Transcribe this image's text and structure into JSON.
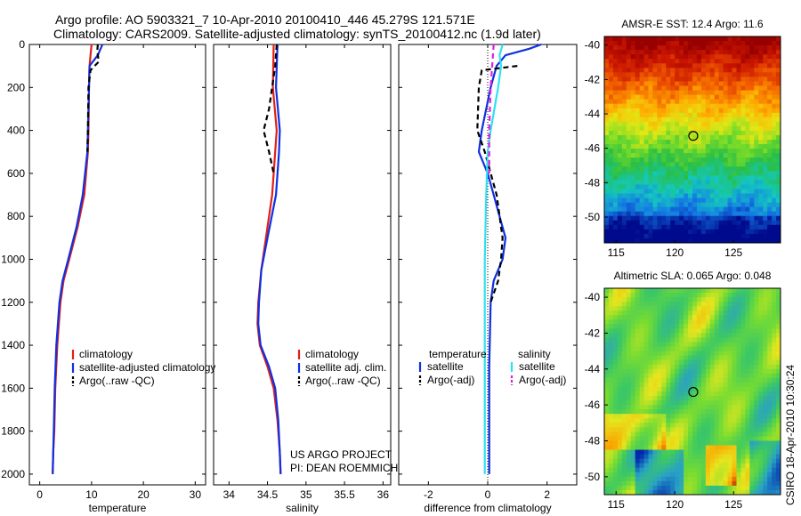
{
  "header": {
    "title_line1": "Argo profile: AO 5903321_7 10-Apr-2010 20100410_446 45.279S 121.571E",
    "title_line2": "Climatology: CARS2009. Satellite-adjusted climatology: synTS_20100412.nc (1.9d later)"
  },
  "credits": {
    "line1": "US ARGO PROJECT",
    "line2": "PI: DEAN ROEMMICH"
  },
  "side_label": "CSIRO 18-Apr-2010 10:30:24",
  "colors": {
    "climatology": "#e0201a",
    "satellite": "#1030e0",
    "argo": "#000000",
    "salinity_satellite": "#30e0f0",
    "salinity_argo": "#e020e0"
  },
  "chart_data": [
    {
      "type": "line",
      "id": "temperature_panel",
      "xlabel": "temperature",
      "ylabel": "",
      "xlim": [
        -2,
        32
      ],
      "ylim": [
        2050,
        0
      ],
      "xticks": [
        0,
        10,
        20,
        30
      ],
      "yticks": [
        0,
        200,
        400,
        600,
        800,
        1000,
        1200,
        1400,
        1600,
        1800,
        2000
      ],
      "y_reversed": true,
      "legend_position": "center-right",
      "series": [
        {
          "name": "climatology",
          "color": "#e0201a",
          "style": "solid",
          "x": [
            10.0,
            9.8,
            9.6,
            9.5,
            9.4,
            9.3,
            8.6,
            7.3,
            5.7,
            4.6,
            4.0,
            3.4,
            3.0,
            2.8,
            2.6,
            2.5
          ],
          "y": [
            0,
            50,
            100,
            200,
            400,
            500,
            700,
            850,
            1000,
            1100,
            1200,
            1400,
            1600,
            1800,
            1900,
            2000
          ]
        },
        {
          "name": "satellite-adjusted climatology",
          "color": "#1030e0",
          "style": "solid",
          "x": [
            12.1,
            11.2,
            9.6,
            9.5,
            9.3,
            9.2,
            8.3,
            7.1,
            5.5,
            4.4,
            3.8,
            3.2,
            2.9,
            2.7,
            2.6,
            2.5
          ],
          "y": [
            0,
            50,
            100,
            200,
            400,
            500,
            700,
            850,
            1000,
            1100,
            1200,
            1400,
            1600,
            1800,
            1900,
            2000
          ]
        },
        {
          "name": "Argo(..raw -QC)",
          "color": "#000000",
          "style": "dashed",
          "x": [
            11.2,
            11.1,
            11.4,
            9.8,
            9.4,
            9.3,
            9.2
          ],
          "y": [
            0,
            30,
            80,
            120,
            200,
            400,
            500
          ]
        }
      ]
    },
    {
      "type": "line",
      "id": "salinity_panel",
      "xlabel": "salinity",
      "ylabel": "",
      "xlim": [
        33.8,
        36.1
      ],
      "ylim": [
        2050,
        0
      ],
      "xticks": [
        34,
        34.5,
        35,
        35.5,
        36
      ],
      "y_reversed": true,
      "legend_position": "center-right",
      "series": [
        {
          "name": "climatology",
          "color": "#e0201a",
          "style": "solid",
          "x": [
            34.58,
            34.57,
            34.62,
            34.6,
            34.56,
            34.48,
            34.42,
            34.38,
            34.37,
            34.4,
            34.5,
            34.58,
            34.63,
            34.66,
            34.67
          ],
          "y": [
            0,
            200,
            400,
            500,
            700,
            900,
            1050,
            1200,
            1300,
            1400,
            1500,
            1600,
            1750,
            1900,
            2000
          ]
        },
        {
          "name": "satellite adj. clim.",
          "color": "#1030e0",
          "style": "solid",
          "x": [
            34.63,
            34.61,
            34.66,
            34.65,
            34.61,
            34.5,
            34.42,
            34.39,
            34.38,
            34.41,
            34.52,
            34.6,
            34.64,
            34.66,
            34.67
          ],
          "y": [
            0,
            200,
            400,
            500,
            700,
            900,
            1050,
            1200,
            1300,
            1400,
            1500,
            1600,
            1750,
            1900,
            2000
          ]
        },
        {
          "name": "Argo(..raw -QC)",
          "color": "#000000",
          "style": "dashed",
          "x": [
            34.62,
            34.6,
            34.52,
            34.45,
            34.52,
            34.58
          ],
          "y": [
            0,
            100,
            300,
            400,
            500,
            600
          ]
        }
      ]
    },
    {
      "type": "line",
      "id": "difference_panel",
      "xlabel": "difference from climatology",
      "ylabel": "",
      "xlim": [
        -3.0,
        3.0
      ],
      "ylim": [
        2050,
        0
      ],
      "xticks": [
        -2,
        0,
        2
      ],
      "y_reversed": true,
      "legend_position": "center",
      "legend_titles": [
        "temperature",
        "salinity"
      ],
      "series": [
        {
          "name": "satellite",
          "group": "temperature",
          "color": "#1030e0",
          "style": "solid",
          "x": [
            1.8,
            1.4,
            0.6,
            0.3,
            0.1,
            -0.2,
            -0.3,
            0.0,
            0.2,
            0.4,
            0.6,
            0.5,
            0.2,
            0.1,
            0.05,
            0.05
          ],
          "y": [
            0,
            20,
            50,
            100,
            200,
            400,
            500,
            600,
            700,
            800,
            900,
            1000,
            1100,
            1200,
            1500,
            2000
          ]
        },
        {
          "name": "Argo(-adj)",
          "group": "temperature",
          "color": "#000000",
          "style": "dashed",
          "x": [
            1.0,
            -0.2,
            -0.3,
            -0.35,
            -0.1,
            0.3,
            0.5,
            0.45,
            0.35,
            0.1
          ],
          "y": [
            100,
            120,
            200,
            400,
            500,
            700,
            900,
            1000,
            1100,
            1200
          ]
        },
        {
          "name": "satellite",
          "group": "salinity",
          "color": "#30e0f0",
          "style": "solid",
          "x": [
            0.5,
            0.4,
            0.45,
            0.35,
            0.1,
            0.0,
            -0.05,
            -0.1,
            -0.1,
            -0.1
          ],
          "y": [
            0,
            50,
            100,
            200,
            400,
            500,
            700,
            1000,
            1500,
            2000
          ]
        },
        {
          "name": "Argo(-adj)",
          "group": "salinity",
          "color": "#e020e0",
          "style": "dashed",
          "x": [
            0.2,
            0.1,
            0.05,
            0.05
          ],
          "y": [
            0,
            200,
            400,
            600
          ]
        }
      ]
    },
    {
      "type": "heatmap",
      "id": "sst_map",
      "title": "AMSR-E SST: 12.4 Argo: 11.6",
      "xlim": [
        114,
        129
      ],
      "ylim": [
        -51.5,
        -39.5
      ],
      "xticks": [
        115,
        120,
        125
      ],
      "yticks": [
        -40,
        -42,
        -44,
        -46,
        -48,
        -50
      ],
      "marker": {
        "lon": 121.571,
        "lat": -45.279
      }
    },
    {
      "type": "heatmap",
      "id": "sla_map",
      "title": "Altimetric SLA: 0.065 Argo: 0.048",
      "xlim": [
        114,
        129
      ],
      "ylim": [
        -51,
        -39.5
      ],
      "xticks": [
        115,
        120,
        125
      ],
      "yticks": [
        -40,
        -42,
        -44,
        -46,
        -48,
        -50
      ],
      "marker": {
        "lon": 121.571,
        "lat": -45.279
      }
    }
  ]
}
